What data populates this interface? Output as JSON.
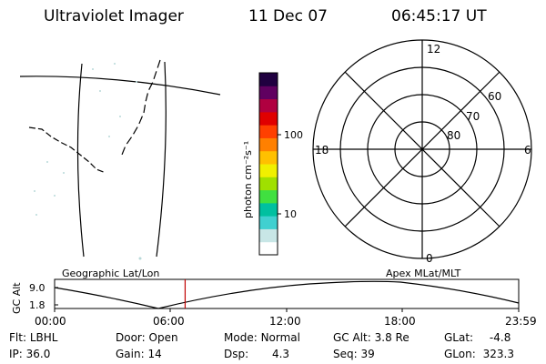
{
  "header": {
    "instrument": "Ultraviolet Imager",
    "date": "11 Dec 07",
    "time": "06:45:17 UT"
  },
  "colorbar": {
    "unit_label": "photon cm⁻²s⁻¹",
    "ticks": [
      "100",
      "10"
    ],
    "colors": [
      "#ffffff",
      "#c8e6e6",
      "#40d0d0",
      "#00c0a0",
      "#40e040",
      "#a0e000",
      "#f0f000",
      "#ffc000",
      "#ff8000",
      "#ff4000",
      "#e00000",
      "#b00040",
      "#600060",
      "#200040"
    ]
  },
  "polar_plot": {
    "mlt_labels": {
      "top": "12",
      "right": "6",
      "bottom": "0",
      "left": "18"
    },
    "lat_labels": [
      "60",
      "70",
      "80"
    ]
  },
  "timeline": {
    "left_caption": "Geographic Lat/Lon",
    "right_caption": "Apex MLat/MLT",
    "axis_label": "GC Alt",
    "y_ticks": [
      "9.0",
      "1.8"
    ],
    "x_ticks": [
      "00:00",
      "06:00",
      "12:00",
      "18:00",
      "23:59"
    ],
    "current_time_marker": "06:45",
    "marker_color": "#c00000"
  },
  "info": {
    "flt_label": "Flt:",
    "flt_value": "LBHL",
    "ip_label": "IP:",
    "ip_value": "36.0",
    "door_label": "Door:",
    "door_value": "Open",
    "gain_label": "Gain:",
    "gain_value": "14",
    "mode_label": "Mode:",
    "mode_value": "Normal",
    "dsp_label": "Dsp:",
    "dsp_value": "4.3",
    "gcalt_label": "GC Alt:",
    "gcalt_value": "3.8 Re",
    "seq_label": "Seq:",
    "seq_value": "39",
    "glat_label": "GLat:",
    "glat_value": "-4.8",
    "glon_label": "GLon:",
    "glon_value": "323.3"
  }
}
